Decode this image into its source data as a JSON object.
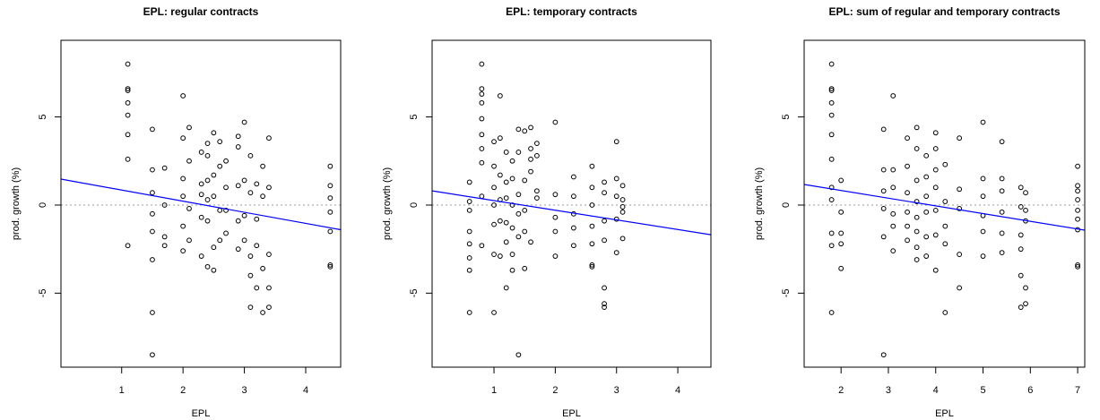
{
  "chart_data": [
    {
      "type": "scatter",
      "title": "EPL: regular contracts",
      "xlabel": "EPL",
      "ylabel": "prod. growth (%)",
      "x": [
        1.1,
        1.1,
        1.1,
        1.1,
        1.1,
        1.1,
        1.1,
        1.1,
        1.5,
        1.5,
        1.5,
        1.5,
        1.5,
        1.5,
        1.5,
        1.5,
        1.7,
        1.7,
        1.7,
        1.7,
        2.0,
        2.0,
        2.0,
        2.0,
        2.0,
        2.0,
        2.1,
        2.1,
        2.1,
        2.1,
        2.3,
        2.3,
        2.3,
        2.3,
        2.3,
        2.4,
        2.4,
        2.4,
        2.4,
        2.4,
        2.4,
        2.5,
        2.5,
        2.5,
        2.5,
        2.5,
        2.6,
        2.6,
        2.6,
        2.6,
        2.7,
        2.7,
        2.7,
        2.7,
        2.9,
        2.9,
        2.9,
        2.9,
        2.9,
        3.0,
        3.0,
        3.0,
        3.0,
        3.1,
        3.1,
        3.1,
        3.1,
        3.1,
        3.2,
        3.2,
        3.2,
        3.2,
        3.3,
        3.3,
        3.3,
        3.3,
        3.4,
        3.4,
        3.4,
        3.4,
        3.4,
        4.4,
        4.4,
        4.4,
        4.4,
        4.4,
        4.4,
        4.4
      ],
      "values": [
        8.0,
        6.6,
        6.5,
        5.8,
        5.1,
        4.0,
        2.6,
        -2.3,
        4.3,
        2.0,
        0.7,
        -0.5,
        -1.5,
        -3.1,
        -6.1,
        -8.5,
        2.1,
        0.0,
        -1.8,
        -2.3,
        6.2,
        3.8,
        1.5,
        0.5,
        -1.2,
        -2.6,
        4.4,
        2.5,
        -0.2,
        -2.0,
        3.0,
        1.2,
        0.6,
        -0.7,
        -2.9,
        3.5,
        2.8,
        1.4,
        0.3,
        -0.9,
        -3.5,
        4.1,
        1.7,
        0.5,
        -2.4,
        -3.7,
        3.6,
        2.2,
        -0.3,
        -2.0,
        2.5,
        1.0,
        -0.3,
        -1.6,
        3.9,
        3.3,
        1.1,
        -0.9,
        -2.5,
        4.7,
        1.4,
        -0.6,
        -2.0,
        2.8,
        0.7,
        -2.9,
        -4.0,
        -5.8,
        1.2,
        -0.8,
        -2.3,
        -4.7,
        2.2,
        0.5,
        -3.6,
        -6.1,
        3.8,
        1.0,
        -2.8,
        -4.7,
        -5.8,
        2.2,
        1.1,
        0.4,
        -0.4,
        -1.5,
        -3.4,
        -3.5
      ],
      "color": "#000000",
      "fit": {
        "intercept": 1.48,
        "slope": -0.63,
        "color": "#0000ff"
      },
      "reference_line": 0,
      "xlim": [
        0.01,
        4.57
      ],
      "ylim": [
        -9.2,
        9.35
      ],
      "xticks": [
        1,
        2,
        3,
        4
      ],
      "yticks": [
        -5,
        0,
        5
      ]
    },
    {
      "type": "scatter",
      "title": "EPL: temporary contracts",
      "xlabel": "EPL",
      "ylabel": "prod. growth (%)",
      "x": [
        0.6,
        0.6,
        0.6,
        0.6,
        0.6,
        0.6,
        0.6,
        0.6,
        0.8,
        0.8,
        0.8,
        0.8,
        0.8,
        0.8,
        0.8,
        0.8,
        0.8,
        0.8,
        1.0,
        1.0,
        1.0,
        1.0,
        1.0,
        1.0,
        1.0,
        1.1,
        1.1,
        1.1,
        1.1,
        1.1,
        1.1,
        1.2,
        1.2,
        1.2,
        1.2,
        1.2,
        1.2,
        1.3,
        1.3,
        1.3,
        1.3,
        1.3,
        1.3,
        1.4,
        1.4,
        1.4,
        1.4,
        1.4,
        1.4,
        1.5,
        1.5,
        1.5,
        1.5,
        1.5,
        1.6,
        1.6,
        1.6,
        1.6,
        1.6,
        1.7,
        1.7,
        1.7,
        1.7,
        2.0,
        2.0,
        2.0,
        2.0,
        2.0,
        2.3,
        2.3,
        2.3,
        2.3,
        2.3,
        2.6,
        2.6,
        2.6,
        2.6,
        2.6,
        2.6,
        2.6,
        2.8,
        2.8,
        2.8,
        2.8,
        2.8,
        2.8,
        2.8,
        3.0,
        3.0,
        3.0,
        3.0,
        3.0,
        3.1,
        3.1,
        3.1,
        3.1,
        3.1
      ],
      "values": [
        1.3,
        0.2,
        -0.3,
        -1.5,
        -2.2,
        -3.0,
        -3.7,
        -6.1,
        8.0,
        6.6,
        6.3,
        5.8,
        4.9,
        4.0,
        3.2,
        2.4,
        0.5,
        -2.3,
        3.6,
        2.2,
        1.0,
        0.0,
        -1.1,
        -2.8,
        -6.1,
        6.2,
        3.8,
        1.7,
        0.3,
        -0.9,
        -2.9,
        3.0,
        1.3,
        0.4,
        -1.0,
        -2.1,
        -4.7,
        2.5,
        1.5,
        0.0,
        -1.3,
        -2.8,
        -3.7,
        4.3,
        3.0,
        0.6,
        -0.5,
        -1.8,
        -8.5,
        4.2,
        1.4,
        -0.3,
        -1.5,
        -3.6,
        4.4,
        3.2,
        2.6,
        1.9,
        -2.1,
        3.5,
        2.8,
        0.8,
        0.4,
        4.7,
        0.6,
        -0.7,
        -1.5,
        -2.9,
        1.6,
        0.5,
        -0.5,
        -1.3,
        -2.3,
        2.2,
        1.0,
        0.0,
        -1.2,
        -2.2,
        -3.4,
        -3.5,
        1.3,
        0.7,
        -0.9,
        -2.0,
        -4.7,
        -5.6,
        -5.8,
        3.6,
        1.5,
        0.5,
        -0.8,
        -2.7,
        1.1,
        0.3,
        -0.1,
        -0.4,
        -1.9
      ],
      "color": "#000000",
      "fit": {
        "intercept": 0.8,
        "slope": -0.547,
        "color": "#0000ff"
      },
      "reference_line": 0,
      "xlim": [
        -0.01,
        4.54
      ],
      "ylim": [
        -9.2,
        9.35
      ],
      "xticks": [
        1,
        2,
        3,
        4
      ],
      "yticks": [
        -5,
        0,
        5
      ]
    },
    {
      "type": "scatter",
      "title": "EPL: sum of regular and temporary contracts",
      "xlabel": "EPL",
      "ylabel": "prod. growth (%)",
      "x": [
        1.8,
        1.8,
        1.8,
        1.8,
        1.8,
        1.8,
        1.8,
        1.8,
        1.8,
        1.8,
        1.8,
        1.8,
        2.0,
        2.0,
        2.0,
        2.0,
        2.0,
        2.9,
        2.9,
        2.9,
        2.9,
        2.9,
        2.9,
        3.1,
        3.1,
        3.1,
        3.1,
        3.1,
        3.1,
        3.4,
        3.4,
        3.4,
        3.4,
        3.4,
        3.4,
        3.6,
        3.6,
        3.6,
        3.6,
        3.6,
        3.6,
        3.6,
        3.6,
        3.8,
        3.8,
        3.8,
        3.8,
        3.8,
        3.8,
        4.0,
        4.0,
        4.0,
        4.0,
        4.0,
        4.0,
        4.0,
        4.2,
        4.2,
        4.2,
        4.2,
        4.2,
        4.5,
        4.5,
        4.5,
        4.5,
        4.5,
        5.0,
        5.0,
        5.0,
        5.0,
        5.0,
        5.0,
        5.4,
        5.4,
        5.4,
        5.4,
        5.4,
        5.4,
        5.8,
        5.8,
        5.8,
        5.8,
        5.8,
        5.8,
        5.9,
        5.9,
        5.9,
        5.9,
        5.9,
        7.0,
        7.0,
        7.0,
        7.0,
        7.0,
        7.0,
        7.0,
        7.0,
        7.0
      ],
      "values": [
        8.0,
        6.6,
        6.5,
        5.8,
        5.1,
        4.0,
        2.6,
        1.0,
        0.3,
        -1.6,
        -2.3,
        -6.1,
        1.4,
        -0.4,
        -1.6,
        -2.2,
        -3.6,
        4.3,
        2.0,
        0.8,
        -0.2,
        -1.8,
        -8.5,
        6.2,
        2.0,
        1.0,
        -0.5,
        -1.2,
        -2.6,
        3.8,
        2.2,
        0.7,
        -0.4,
        -1.2,
        -2.0,
        4.4,
        3.2,
        1.4,
        0.2,
        -0.7,
        -1.5,
        -2.4,
        -3.1,
        2.8,
        1.6,
        0.5,
        -0.4,
        -1.8,
        -2.9,
        4.1,
        3.2,
        2.0,
        1.0,
        -0.3,
        -1.7,
        -3.7,
        2.3,
        0.2,
        -1.2,
        -2.2,
        -6.1,
        3.8,
        0.9,
        -0.2,
        -2.8,
        -4.7,
        4.7,
        1.5,
        0.5,
        -0.6,
        -1.5,
        -2.9,
        3.6,
        1.5,
        0.8,
        -0.4,
        -1.6,
        -2.7,
        1.0,
        -0.1,
        -1.7,
        -2.5,
        -4.0,
        -5.8,
        0.7,
        -0.3,
        -0.9,
        -4.7,
        -5.6,
        2.2,
        1.1,
        0.8,
        0.3,
        -0.3,
        -0.8,
        -1.4,
        -3.4,
        -3.5
      ],
      "color": "#000000",
      "fit": {
        "intercept": 1.7,
        "slope": -0.437,
        "color": "#0000ff"
      },
      "reference_line": 0,
      "xlim": [
        1.22,
        7.15
      ],
      "ylim": [
        -9.2,
        9.35
      ],
      "xticks": [
        2,
        3,
        4,
        5,
        6,
        7
      ],
      "yticks": [
        -5,
        0,
        5
      ]
    }
  ]
}
